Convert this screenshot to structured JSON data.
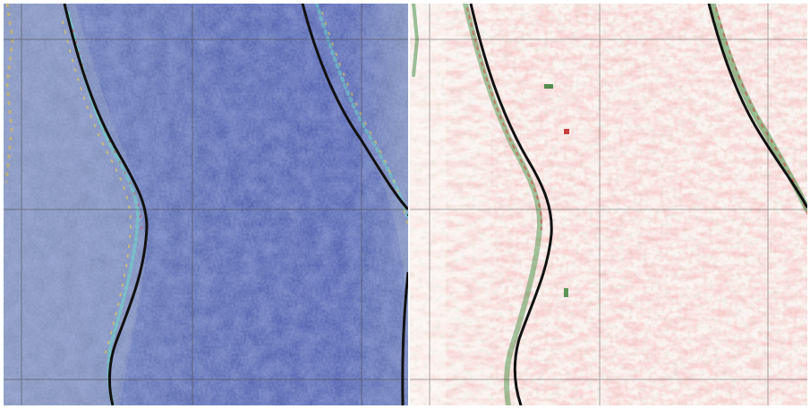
{
  "figure": {
    "panels": [
      {
        "id": "left",
        "style": "false-color-rgb"
      },
      {
        "id": "right",
        "style": "red-green-difference"
      }
    ],
    "colors": {
      "left_base": "#5a6aa8",
      "left_deep": "#3f4fa6",
      "left_light": "#7f8fb5",
      "right_base": "#fbf4f2",
      "diff_red": "#e06060",
      "diff_green": "#3a8a3a",
      "boundary_line": "#111111",
      "grid_line": "#4a4a4a"
    }
  }
}
